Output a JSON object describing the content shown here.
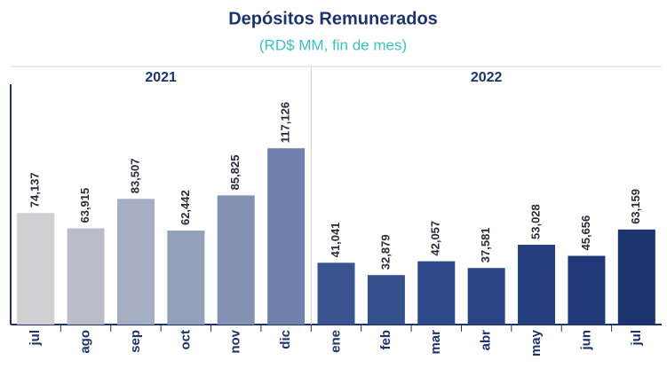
{
  "chart_data": {
    "type": "bar",
    "title": "Depósitos Remunerados",
    "subtitle": "(RD$ MM, fin de mes)",
    "groups": [
      {
        "label": "2021",
        "count": 6
      },
      {
        "label": "2022",
        "count": 7
      }
    ],
    "categories": [
      "jul",
      "ago",
      "sep",
      "oct",
      "nov",
      "dic",
      "ene",
      "feb",
      "mar",
      "abr",
      "may",
      "jun",
      "jul"
    ],
    "values": [
      74137,
      63915,
      83507,
      62442,
      85825,
      117126,
      41041,
      32879,
      42057,
      37581,
      53028,
      45656,
      63159
    ],
    "value_labels": [
      "74,137",
      "63,915",
      "83,507",
      "62,442",
      "85,825",
      "117,126",
      "41,041",
      "32,879",
      "42,057",
      "37,581",
      "53,028",
      "45,656",
      "63,159"
    ],
    "colors": [
      "#d0d0d2",
      "#babdc9",
      "#a6aec3",
      "#949fba",
      "#8491b3",
      "#6f80aa",
      "#3a5490",
      "#34508d",
      "#2f4a88",
      "#2b4584",
      "#263f7e",
      "#213978",
      "#1c3370"
    ],
    "ylim": [
      0,
      175000
    ]
  }
}
